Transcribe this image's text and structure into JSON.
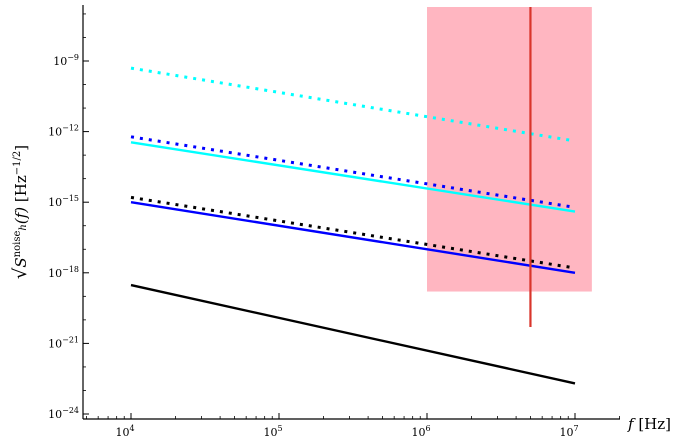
{
  "chart_data": {
    "type": "line",
    "xlabel": "f [Hz]",
    "ylabel": "√S_h^noise(f) [Hz^-1/2]",
    "x_scale": "log",
    "y_scale": "log",
    "xlim": [
      3500,
      15000000
    ],
    "ylim": [
      5e-25,
      5e-07
    ],
    "x_ticks": [
      {
        "value": 10000,
        "base": "10",
        "exp": "4"
      },
      {
        "value": 100000,
        "base": "10",
        "exp": "5"
      },
      {
        "value": 1000000,
        "base": "10",
        "exp": "6"
      },
      {
        "value": 10000000,
        "base": "10",
        "exp": "7"
      }
    ],
    "y_ticks": [
      {
        "value": 1e-24,
        "base": "10",
        "exp": "-24"
      },
      {
        "value": 1e-21,
        "base": "10",
        "exp": "-21"
      },
      {
        "value": 1e-18,
        "base": "10",
        "exp": "-18"
      },
      {
        "value": 1e-15,
        "base": "10",
        "exp": "-15"
      },
      {
        "value": 1e-12,
        "base": "10",
        "exp": "-12"
      },
      {
        "value": 1e-09,
        "base": "10",
        "exp": "-9"
      }
    ],
    "grid": false,
    "legend": "none",
    "series": [
      {
        "color": "#00ffff",
        "style": "dotted",
        "x": [
          10000,
          10000000
        ],
        "y": [
          5e-10,
          4e-13
        ]
      },
      {
        "color": "#00ffff",
        "style": "solid",
        "x": [
          10000,
          10000000
        ],
        "y": [
          3.5e-13,
          4e-16
        ]
      },
      {
        "color": "#0000ff",
        "style": "dotted",
        "x": [
          10000,
          10000000
        ],
        "y": [
          6e-13,
          6e-16
        ]
      },
      {
        "color": "#0000ff",
        "style": "solid",
        "x": [
          10000,
          10000000
        ],
        "y": [
          1e-15,
          1e-18
        ]
      },
      {
        "color": "#000000",
        "style": "dotted",
        "x": [
          10000,
          10000000
        ],
        "y": [
          1.6e-15,
          1.6e-18
        ]
      },
      {
        "color": "#000000",
        "style": "solid",
        "x": [
          10000,
          10000000
        ],
        "y": [
          3e-19,
          2e-23
        ]
      }
    ],
    "shaded_region": {
      "color": "#ffb6c1",
      "x": [
        1000000,
        13000000
      ],
      "y": [
        1.6e-19,
        3e-07
      ]
    },
    "vertical_line": {
      "color": "#d9352b",
      "x": 5000000,
      "y": [
        5e-21,
        3e-07
      ]
    }
  }
}
